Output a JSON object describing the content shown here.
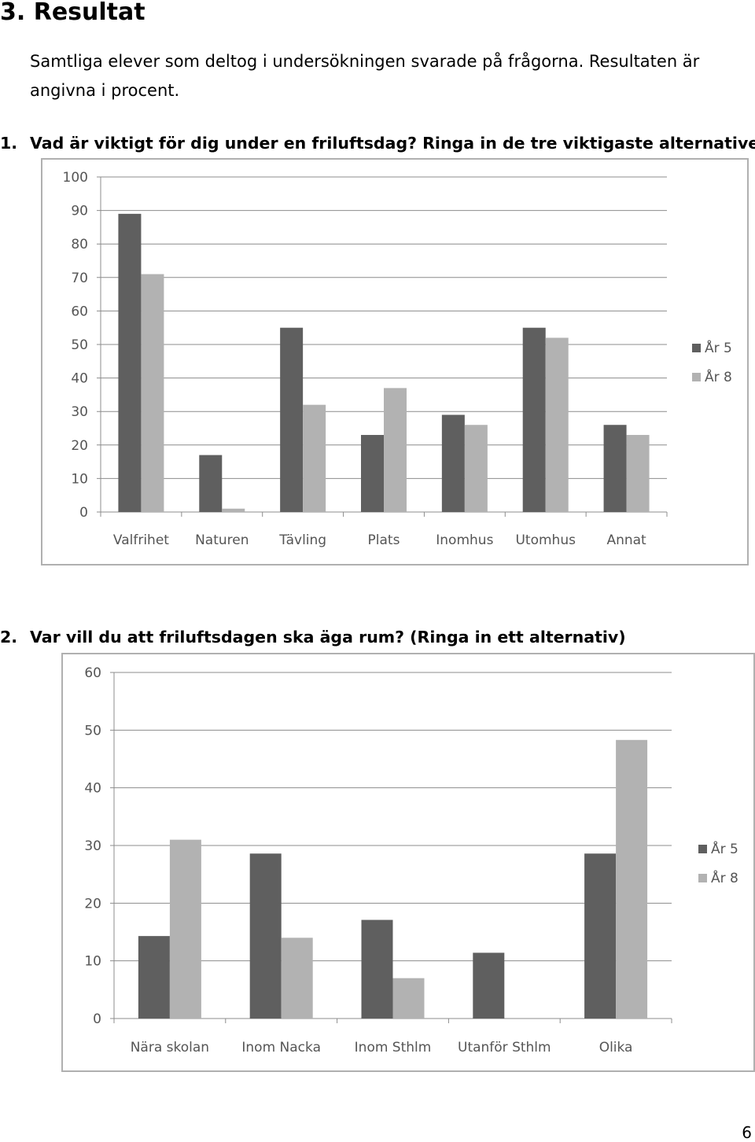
{
  "document": {
    "heading": "3. Resultat",
    "intro": "Samtliga elever som deltog i undersökningen svarade på frågorna. Resultaten är angivna i procent.",
    "page_number": "6"
  },
  "questions": [
    {
      "number": "1.",
      "text": "Vad är viktigt för dig under en friluftsdag? Ringa in de tre viktigaste alternativen."
    },
    {
      "number": "2.",
      "text": "Var vill du att friluftsdagen ska äga rum? (Ringa in ett alternativ)"
    }
  ],
  "chart_data": [
    {
      "type": "bar",
      "title": "",
      "xlabel": "",
      "ylabel": "",
      "categories": [
        "Valfrihet",
        "Naturen",
        "Tävling",
        "Plats",
        "Inomhus",
        "Utomhus",
        "Annat"
      ],
      "series": [
        {
          "name": "År 5",
          "values": [
            89,
            17,
            55,
            23,
            29,
            55,
            26
          ],
          "color": "#5f5f5f"
        },
        {
          "name": "År 8",
          "values": [
            71,
            1,
            32,
            37,
            26,
            52,
            23
          ],
          "color": "#b2b2b2"
        }
      ],
      "ylim": [
        0,
        100
      ],
      "yticks": [
        0,
        10,
        20,
        30,
        40,
        50,
        60,
        70,
        80,
        90,
        100
      ],
      "grid": true,
      "legend": "right"
    },
    {
      "type": "bar",
      "title": "",
      "xlabel": "",
      "ylabel": "",
      "categories": [
        "Nära skolan",
        "Inom Nacka",
        "Inom Sthlm",
        "Utanför Sthlm",
        "Olika"
      ],
      "series": [
        {
          "name": "År 5",
          "values": [
            14.3,
            28.6,
            17.1,
            11.4,
            28.6
          ],
          "color": "#5f5f5f"
        },
        {
          "name": "År 8",
          "values": [
            31,
            14,
            7,
            0,
            48.3
          ],
          "color": "#b2b2b2"
        }
      ],
      "ylim": [
        0,
        60
      ],
      "yticks": [
        0,
        10,
        20,
        30,
        40,
        50,
        60
      ],
      "grid": true,
      "legend": "right"
    }
  ]
}
